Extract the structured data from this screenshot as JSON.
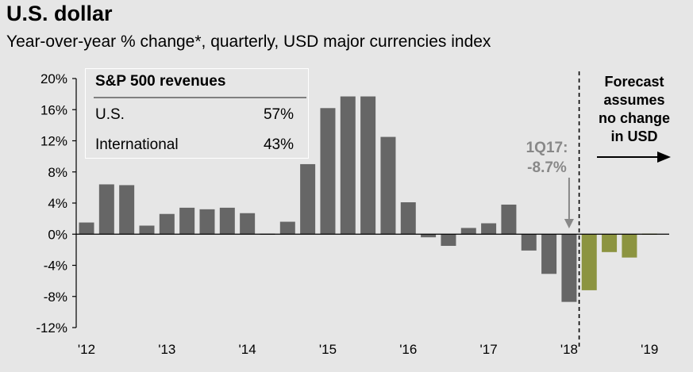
{
  "header": {
    "title": "U.S. dollar",
    "subtitle": "Year-over-year % change*, quarterly, USD major currencies index"
  },
  "inset_table": {
    "title": "S&P 500 revenues",
    "rows": [
      {
        "label": "U.S.",
        "value": "57%"
      },
      {
        "label": "International",
        "value": "43%"
      }
    ]
  },
  "colors": {
    "actual": "#666666",
    "forecast": "#8c9440",
    "background": "#e6e6e6",
    "annotation": "#888888"
  },
  "chart_data": {
    "type": "bar",
    "x_tick_labels": [
      "'12",
      "'13",
      "'14",
      "'15",
      "'16",
      "'17",
      "'18",
      "'19"
    ],
    "y_tick_labels": [
      "20%",
      "16%",
      "12%",
      "8%",
      "4%",
      "0%",
      "-4%",
      "-8%",
      "-12%"
    ],
    "ylim": [
      -12,
      20
    ],
    "y_ticks": [
      20,
      16,
      12,
      8,
      4,
      0,
      -4,
      -8,
      -12
    ],
    "series": [
      {
        "values": [
          1.5,
          6.4,
          6.3,
          1.1,
          2.6,
          3.4,
          3.2,
          3.4,
          2.7,
          -0.1,
          1.6,
          9.0,
          16.2,
          17.7,
          17.7,
          12.5,
          4.1,
          -0.4,
          -1.5,
          0.8,
          1.4,
          3.8,
          -2.1,
          -5.1,
          -8.7
        ]
      },
      {
        "values": [
          -7.2,
          -2.3,
          -3.0,
          0.1
        ]
      }
    ],
    "annotation_callout": {
      "line1": "1Q17:",
      "line2": "-8.7%"
    },
    "forecast_note": [
      "Forecast",
      "assumes",
      "no change",
      "in USD"
    ]
  }
}
